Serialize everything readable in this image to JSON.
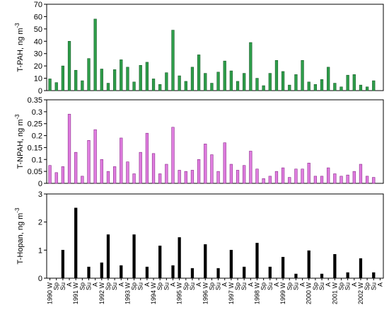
{
  "chart_data": {
    "type": "bar",
    "categories": [
      "1990 W",
      "Sp",
      "Su",
      "A",
      "1991 W",
      "Sp",
      "Su",
      "A",
      "1992 W",
      "Sp",
      "Su",
      "A",
      "1993 W",
      "Sp",
      "Su",
      "A",
      "1994 W",
      "Sp",
      "Su",
      "A",
      "1995 W",
      "Sp",
      "Su",
      "A",
      "1996 W",
      "Sp",
      "Su",
      "A",
      "1997 W",
      "Sp",
      "Su",
      "A",
      "1998 W",
      "Sp",
      "Su",
      "A",
      "1999 W",
      "Sp",
      "Su",
      "A",
      "2000 W",
      "Sp",
      "Su",
      "A",
      "2001 W",
      "Sp",
      "Su",
      "A",
      "2002 W",
      "Sp",
      "Su",
      "A"
    ],
    "panels": [
      {
        "ylabel": "T-PAH, ng m",
        "ylabel_sup": "-3",
        "ylim": [
          0,
          70
        ],
        "yticks": [
          "0",
          "10",
          "20",
          "30",
          "40",
          "50",
          "60",
          "70"
        ],
        "color": "#2e9e4a",
        "edge": "#1a5c2a",
        "values": [
          9.5,
          6.5,
          20,
          40,
          16.5,
          8,
          26,
          58,
          17.5,
          6,
          17,
          25,
          19,
          7,
          20.5,
          23,
          9.5,
          5,
          14.5,
          49,
          12,
          7.5,
          19,
          29,
          14,
          6,
          15,
          24,
          16,
          7.5,
          14,
          39,
          10,
          4,
          14,
          24.5,
          15.5,
          4.5,
          13,
          24.5,
          7,
          5,
          9,
          19,
          6,
          3,
          12.5,
          13,
          4.5,
          3,
          8,
          0
        ]
      },
      {
        "ylabel": "T-NPAH, ng m",
        "ylabel_sup": "-3",
        "ylim": [
          0,
          0.35
        ],
        "yticks": [
          "0",
          "0.05",
          "0.1",
          "0.15",
          "0.2",
          "0.25",
          "0.3",
          "0.35"
        ],
        "color": "#e07ee0",
        "edge": "#8a2a8a",
        "values": [
          0.075,
          0.045,
          0.07,
          0.29,
          0.13,
          0.03,
          0.18,
          0.225,
          0.1,
          0.05,
          0.07,
          0.19,
          0.09,
          0.04,
          0.13,
          0.21,
          0.125,
          0.04,
          0.08,
          0.235,
          0.055,
          0.05,
          0.055,
          0.1,
          0.165,
          0.12,
          0.05,
          0.17,
          0.08,
          0.055,
          0.075,
          0.135,
          0.06,
          0.02,
          0.03,
          0.05,
          0.065,
          0.025,
          0.06,
          0.06,
          0.085,
          0.03,
          0.03,
          0.065,
          0.04,
          0.03,
          0.035,
          0.05,
          0.08,
          0.03,
          0.025,
          0
        ]
      },
      {
        "ylabel": "T-Hopan, ng m",
        "ylabel_sup": "-3",
        "ylim": [
          0,
          3
        ],
        "yticks": [
          "0",
          "1",
          "2",
          "3"
        ],
        "color": "#000000",
        "edge": "#000000",
        "values": [
          null,
          null,
          1,
          null,
          2.5,
          null,
          0.4,
          null,
          0.55,
          1.55,
          null,
          0.45,
          null,
          1.55,
          null,
          0.4,
          null,
          1.15,
          null,
          0.45,
          1.45,
          null,
          0.35,
          null,
          1.2,
          null,
          0.35,
          null,
          1,
          null,
          0.4,
          null,
          1.25,
          null,
          0.4,
          null,
          0.75,
          null,
          0.15,
          null,
          0.98,
          null,
          0.15,
          null,
          0.85,
          null,
          0.2,
          null,
          0.7,
          null,
          0.2,
          null
        ]
      }
    ]
  }
}
